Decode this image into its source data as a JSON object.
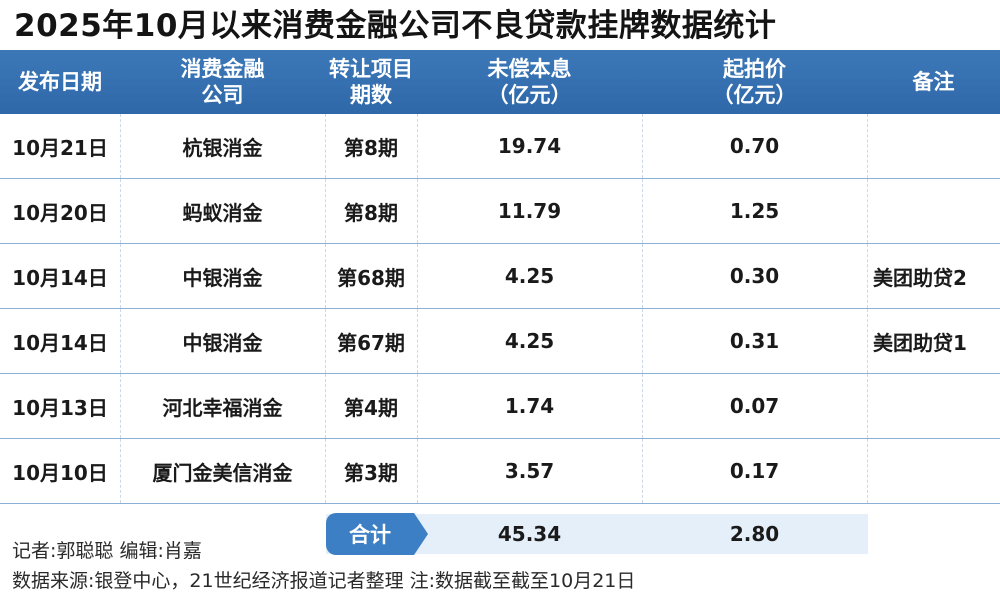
{
  "title": "2025年10月以来消费金融公司不良贷款挂牌数据统计",
  "columns": [
    {
      "line1": "发布日期",
      "line2": ""
    },
    {
      "line1": "消费金融",
      "line2": "公司"
    },
    {
      "line1": "转让项目",
      "line2": "期数"
    },
    {
      "line1": "未偿本息",
      "line2": "（亿元）"
    },
    {
      "line1": "起拍价",
      "line2": "（亿元）"
    },
    {
      "line1": "备注",
      "line2": ""
    }
  ],
  "rows": [
    {
      "date": "10月21日",
      "company": "杭银消金",
      "period": "第8期",
      "principal": "19.74",
      "price": "0.70",
      "note": ""
    },
    {
      "date": "10月20日",
      "company": "蚂蚁消金",
      "period": "第8期",
      "principal": "11.79",
      "price": "1.25",
      "note": ""
    },
    {
      "date": "10月14日",
      "company": "中银消金",
      "period": "第68期",
      "principal": "4.25",
      "price": "0.30",
      "note": "美团助贷2"
    },
    {
      "date": "10月14日",
      "company": "中银消金",
      "period": "第67期",
      "principal": "4.25",
      "price": "0.31",
      "note": "美团助贷1"
    },
    {
      "date": "10月13日",
      "company": "河北幸福消金",
      "period": "第4期",
      "principal": "1.74",
      "price": "0.07",
      "note": ""
    },
    {
      "date": "10月10日",
      "company": "厦门金美信消金",
      "period": "第3期",
      "principal": "3.57",
      "price": "0.17",
      "note": ""
    }
  ],
  "total": {
    "label": "合计",
    "principal": "45.34",
    "price": "2.80"
  },
  "footer": {
    "line1": "记者:郭聪聪  编辑:肖嘉",
    "line2": "数据来源:银登中心，21世纪经济报道记者整理  注:数据截至截至10月21日"
  },
  "colors": {
    "header": "#3472b3",
    "accent": "#3d7fc4",
    "total_bg": "#e5eff9",
    "row_line": "#8ab0d6"
  }
}
